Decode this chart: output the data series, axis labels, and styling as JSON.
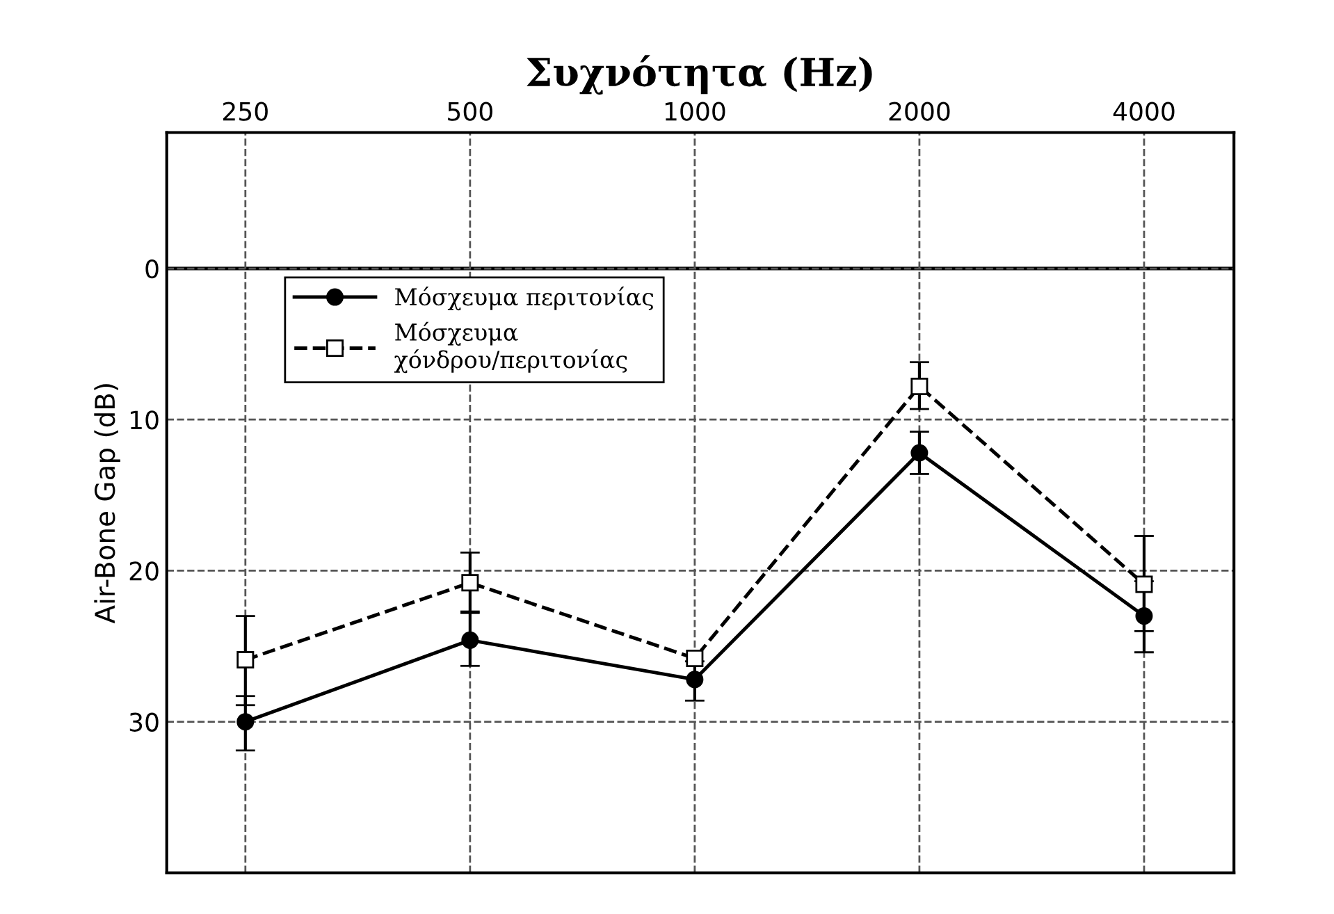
{
  "chart_data": {
    "type": "line",
    "xlabel": "Συχνότητα (Hz)",
    "ylabel": "Air-Bone Gap (dB)",
    "categories": [
      "250",
      "500",
      "1000",
      "2000",
      "4000"
    ],
    "series": [
      {
        "name": "Μόσχευμα περιτονίας",
        "color": "#000000",
        "marker": "circle",
        "line_style": "solid",
        "values": [
          30,
          24.6,
          27.2,
          12.2,
          23.0
        ],
        "errors": [
          [
            28.3,
            31.9
          ],
          [
            22.7,
            26.3
          ],
          [
            26.0,
            28.6
          ],
          [
            10.8,
            13.6
          ],
          [
            20.7,
            25.4
          ]
        ]
      },
      {
        "name": "Μόσχευμα\nχόνδρου/περιτονίας",
        "color": "#000000",
        "marker": "square",
        "line_style": "dashed",
        "values": [
          25.9,
          20.8,
          25.8,
          7.8,
          20.9
        ],
        "errors": [
          [
            23.0,
            28.9
          ],
          [
            18.8,
            22.8
          ],
          null,
          [
            6.2,
            9.3
          ],
          [
            17.7,
            24.0
          ]
        ]
      }
    ],
    "ylim": [
      40,
      -9
    ],
    "yticks": [
      0,
      10,
      20,
      30
    ],
    "ref_lines": [
      {
        "axis": "y",
        "value": 0,
        "color": "#000000",
        "line_style": "solid"
      }
    ],
    "grid": true,
    "legend": "top left"
  }
}
